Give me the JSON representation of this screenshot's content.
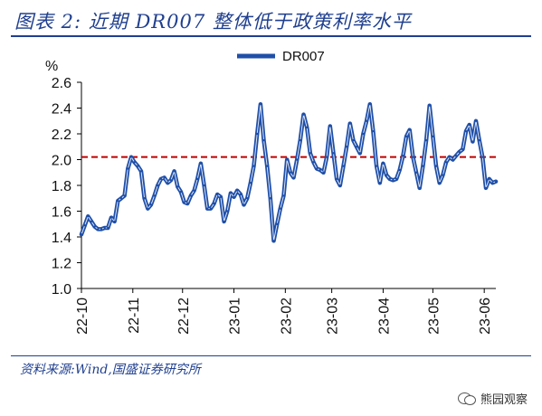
{
  "header": {
    "title": "图表 2:  近期 DR007 整体低于政策利率水平"
  },
  "footer": {
    "source": "资料来源:Wind,国盛证券研究所",
    "watermark": "熊园观察",
    "watermark_icon": "wechat-icon"
  },
  "colors": {
    "series": "#1f4fa8",
    "reference": "#c00000",
    "title": "#1f3f8f"
  },
  "chart_data": {
    "type": "line",
    "title": "",
    "ylabel": "%",
    "xlabel": "",
    "ylim": [
      1.0,
      2.6
    ],
    "yticks": [
      "1.0",
      "1.2",
      "1.4",
      "1.6",
      "1.8",
      "2.0",
      "2.2",
      "2.4",
      "2.6"
    ],
    "xticks": [
      "22-10",
      "22-11",
      "22-12",
      "23-01",
      "23-02",
      "23-03",
      "23-04",
      "23-05",
      "23-06"
    ],
    "x_range": [
      "2022-10-01",
      "2023-06-08"
    ],
    "legend": {
      "position": "top",
      "entries": [
        "DR007"
      ]
    },
    "grid": false,
    "series": [
      {
        "name": "DR007",
        "points": [
          [
            "2022-10-01",
            1.42
          ],
          [
            "2022-10-03",
            1.49
          ],
          [
            "2022-10-05",
            1.56
          ],
          [
            "2022-10-07",
            1.52
          ],
          [
            "2022-10-09",
            1.48
          ],
          [
            "2022-10-11",
            1.46
          ],
          [
            "2022-10-13",
            1.46
          ],
          [
            "2022-10-15",
            1.47
          ],
          [
            "2022-10-17",
            1.47
          ],
          [
            "2022-10-19",
            1.55
          ],
          [
            "2022-10-21",
            1.52
          ],
          [
            "2022-10-23",
            1.68
          ],
          [
            "2022-10-25",
            1.7
          ],
          [
            "2022-10-27",
            1.72
          ],
          [
            "2022-10-29",
            1.93
          ],
          [
            "2022-10-31",
            2.02
          ],
          [
            "2022-11-02",
            1.98
          ],
          [
            "2022-11-04",
            1.95
          ],
          [
            "2022-11-06",
            1.91
          ],
          [
            "2022-11-08",
            1.7
          ],
          [
            "2022-11-10",
            1.62
          ],
          [
            "2022-11-12",
            1.65
          ],
          [
            "2022-11-14",
            1.72
          ],
          [
            "2022-11-16",
            1.8
          ],
          [
            "2022-11-18",
            1.85
          ],
          [
            "2022-11-20",
            1.86
          ],
          [
            "2022-11-22",
            1.82
          ],
          [
            "2022-11-24",
            1.84
          ],
          [
            "2022-11-26",
            1.91
          ],
          [
            "2022-11-28",
            1.79
          ],
          [
            "2022-11-30",
            1.75
          ],
          [
            "2022-12-02",
            1.67
          ],
          [
            "2022-12-04",
            1.66
          ],
          [
            "2022-12-06",
            1.72
          ],
          [
            "2022-12-08",
            1.76
          ],
          [
            "2022-12-10",
            1.85
          ],
          [
            "2022-12-12",
            1.97
          ],
          [
            "2022-12-14",
            1.8
          ],
          [
            "2022-12-16",
            1.62
          ],
          [
            "2022-12-18",
            1.62
          ],
          [
            "2022-12-20",
            1.66
          ],
          [
            "2022-12-22",
            1.73
          ],
          [
            "2022-12-24",
            1.71
          ],
          [
            "2022-12-26",
            1.52
          ],
          [
            "2022-12-28",
            1.6
          ],
          [
            "2022-12-30",
            1.74
          ],
          [
            "2023-01-01",
            1.71
          ],
          [
            "2023-01-03",
            1.76
          ],
          [
            "2023-01-05",
            1.73
          ],
          [
            "2023-01-07",
            1.65
          ],
          [
            "2023-01-09",
            1.7
          ],
          [
            "2023-01-11",
            1.82
          ],
          [
            "2023-01-13",
            1.95
          ],
          [
            "2023-01-15",
            2.2
          ],
          [
            "2023-01-17",
            2.43
          ],
          [
            "2023-01-19",
            2.15
          ],
          [
            "2023-01-21",
            1.95
          ],
          [
            "2023-01-23",
            1.7
          ],
          [
            "2023-01-25",
            1.37
          ],
          [
            "2023-01-27",
            1.5
          ],
          [
            "2023-01-29",
            1.62
          ],
          [
            "2023-01-31",
            1.72
          ],
          [
            "2023-02-02",
            2.0
          ],
          [
            "2023-02-04",
            1.9
          ],
          [
            "2023-02-06",
            1.86
          ],
          [
            "2023-02-08",
            2.0
          ],
          [
            "2023-02-10",
            2.15
          ],
          [
            "2023-02-12",
            2.35
          ],
          [
            "2023-02-14",
            2.25
          ],
          [
            "2023-02-16",
            2.05
          ],
          [
            "2023-02-18",
            1.98
          ],
          [
            "2023-02-20",
            1.93
          ],
          [
            "2023-02-22",
            1.92
          ],
          [
            "2023-02-24",
            1.9
          ],
          [
            "2023-02-26",
            2.02
          ],
          [
            "2023-02-28",
            2.26
          ],
          [
            "2023-03-02",
            2.05
          ],
          [
            "2023-03-04",
            1.85
          ],
          [
            "2023-03-06",
            1.8
          ],
          [
            "2023-03-08",
            1.95
          ],
          [
            "2023-03-10",
            2.1
          ],
          [
            "2023-03-12",
            2.28
          ],
          [
            "2023-03-14",
            2.15
          ],
          [
            "2023-03-16",
            2.1
          ],
          [
            "2023-03-18",
            2.05
          ],
          [
            "2023-03-20",
            2.2
          ],
          [
            "2023-03-22",
            2.3
          ],
          [
            "2023-03-24",
            2.43
          ],
          [
            "2023-03-26",
            2.22
          ],
          [
            "2023-03-28",
            1.95
          ],
          [
            "2023-03-30",
            1.82
          ],
          [
            "2023-04-01",
            1.97
          ],
          [
            "2023-04-03",
            1.88
          ],
          [
            "2023-04-05",
            1.85
          ],
          [
            "2023-04-07",
            1.84
          ],
          [
            "2023-04-09",
            1.85
          ],
          [
            "2023-04-11",
            1.92
          ],
          [
            "2023-04-13",
            2.03
          ],
          [
            "2023-04-15",
            2.18
          ],
          [
            "2023-04-17",
            2.23
          ],
          [
            "2023-04-19",
            2.02
          ],
          [
            "2023-04-21",
            1.9
          ],
          [
            "2023-04-23",
            1.78
          ],
          [
            "2023-04-25",
            1.95
          ],
          [
            "2023-04-27",
            2.15
          ],
          [
            "2023-04-29",
            2.42
          ],
          [
            "2023-05-01",
            2.18
          ],
          [
            "2023-05-03",
            1.95
          ],
          [
            "2023-05-05",
            1.82
          ],
          [
            "2023-05-07",
            1.88
          ],
          [
            "2023-05-09",
            1.98
          ],
          [
            "2023-05-11",
            2.02
          ],
          [
            "2023-05-13",
            2.0
          ],
          [
            "2023-05-15",
            2.03
          ],
          [
            "2023-05-17",
            2.06
          ],
          [
            "2023-05-19",
            2.08
          ],
          [
            "2023-05-21",
            2.22
          ],
          [
            "2023-05-23",
            2.27
          ],
          [
            "2023-05-25",
            2.14
          ],
          [
            "2023-05-27",
            2.3
          ],
          [
            "2023-05-29",
            2.15
          ],
          [
            "2023-05-31",
            2.02
          ],
          [
            "2023-06-02",
            1.78
          ],
          [
            "2023-06-04",
            1.85
          ],
          [
            "2023-06-06",
            1.82
          ],
          [
            "2023-06-08",
            1.83
          ]
        ]
      }
    ],
    "reference_line": {
      "y": 2.02,
      "style": "dashed"
    }
  }
}
